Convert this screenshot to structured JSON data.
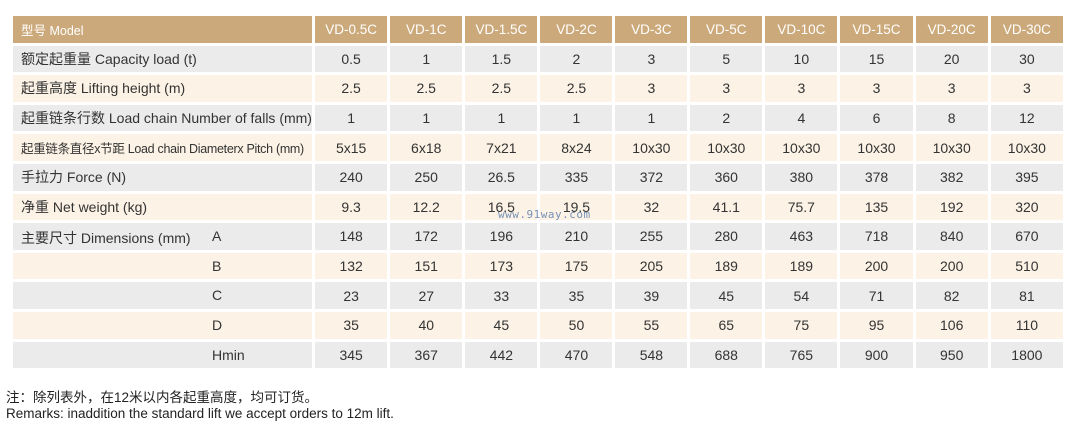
{
  "table": {
    "header_label": "型号 Model",
    "models": [
      "VD-0.5C",
      "VD-1C",
      "VD-1.5C",
      "VD-2C",
      "VD-3C",
      "VD-5C",
      "VD-10C",
      "VD-15C",
      "VD-20C",
      "VD-30C"
    ],
    "rows": [
      {
        "label": "额定起重量 Capacity load (t)",
        "values": [
          "0.5",
          "1",
          "1.5",
          "2",
          "3",
          "5",
          "10",
          "15",
          "20",
          "30"
        ]
      },
      {
        "label": "起重高度 Lifting height (m)",
        "values": [
          "2.5",
          "2.5",
          "2.5",
          "2.5",
          "3",
          "3",
          "3",
          "3",
          "3",
          "3"
        ]
      },
      {
        "label": "起重链条行数 Load chain Number of falls (mm)",
        "values": [
          "1",
          "1",
          "1",
          "1",
          "1",
          "2",
          "4",
          "6",
          "8",
          "12"
        ]
      },
      {
        "label": "起重链条直径x节距 Load chain Diameterx Pitch (mm)",
        "values": [
          "5x15",
          "6x18",
          "7x21",
          "8x24",
          "10x30",
          "10x30",
          "10x30",
          "10x30",
          "10x30",
          "10x30"
        ]
      },
      {
        "label": "手拉力 Force (N)",
        "values": [
          "240",
          "250",
          "26.5",
          "335",
          "372",
          "360",
          "380",
          "378",
          "382",
          "395"
        ]
      },
      {
        "label": "净重 Net weight (kg)",
        "values": [
          "9.3",
          "12.2",
          "16.5",
          "19.5",
          "32",
          "41.1",
          "75.7",
          "135",
          "192",
          "320"
        ]
      },
      {
        "label": "主要尺寸 Dimensions (mm)",
        "key": "A",
        "values": [
          "148",
          "172",
          "196",
          "210",
          "255",
          "280",
          "463",
          "718",
          "840",
          "670"
        ]
      },
      {
        "label": "",
        "key": "B",
        "values": [
          "132",
          "151",
          "173",
          "175",
          "205",
          "189",
          "189",
          "200",
          "200",
          "510"
        ]
      },
      {
        "label": "",
        "key": "C",
        "values": [
          "23",
          "27",
          "33",
          "35",
          "39",
          "45",
          "54",
          "71",
          "82",
          "81"
        ]
      },
      {
        "label": "",
        "key": "D",
        "values": [
          "35",
          "40",
          "45",
          "50",
          "55",
          "65",
          "75",
          "95",
          "106",
          "110"
        ]
      },
      {
        "label": "",
        "key": "Hmin",
        "values": [
          "345",
          "367",
          "442",
          "470",
          "548",
          "688",
          "765",
          "900",
          "950",
          "1800"
        ]
      }
    ]
  },
  "notes": {
    "cn": "注：除列表外，在12米以内各起重高度，均可订货。",
    "en": "Remarks: inaddition the standard lift we accept orders to 12m lift."
  },
  "watermark": "www.91way.com"
}
